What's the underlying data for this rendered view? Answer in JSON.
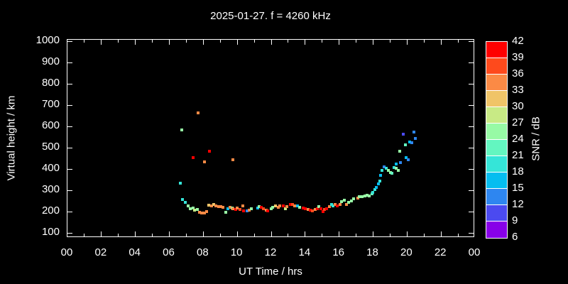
{
  "title": "2025-01-27. f = 4260 kHz",
  "x_axis": {
    "label": "UT Time / hrs",
    "tick_labels": [
      "00",
      "02",
      "04",
      "06",
      "08",
      "10",
      "12",
      "14",
      "16",
      "18",
      "20",
      "22",
      "00"
    ],
    "major_step_hrs": 2,
    "minor_step_hrs": 1,
    "range_hrs": [
      0,
      24
    ]
  },
  "y_axis": {
    "label": "Virtual height / km",
    "tick_labels": [
      "100",
      "200",
      "300",
      "400",
      "500",
      "600",
      "700",
      "800",
      "900",
      "1000"
    ],
    "tick_values": [
      100,
      200,
      300,
      400,
      500,
      600,
      700,
      800,
      900,
      1000
    ],
    "range_km": [
      100,
      1000
    ]
  },
  "colorbar": {
    "title": "SNR / dB",
    "tick_labels": [
      "42",
      "39",
      "36",
      "33",
      "30",
      "27",
      "24",
      "21",
      "18",
      "15",
      "12",
      "9",
      "6"
    ],
    "colors_top_to_bottom": [
      "#fe0000",
      "#fe4a1c",
      "#fb8a45",
      "#f0c468",
      "#c8ea85",
      "#97faa5",
      "#63f6c0",
      "#35e5d8",
      "#06bdf0",
      "#2e86f0",
      "#4b4af0",
      "#8800e8"
    ]
  },
  "chart_data": {
    "type": "scatter",
    "title": "2025-01-27. f = 4260 kHz",
    "xlabel": "UT Time / hrs",
    "ylabel": "Virtual height / km",
    "xlim": [
      0,
      24
    ],
    "ylim": [
      100,
      1000
    ],
    "grid": false,
    "legend": "colorbar SNR / dB, 6 to 42 step 3",
    "snr_bins": {
      "min": 6,
      "max": 42,
      "step": 3
    },
    "palette_low_to_high": [
      "#8800e8",
      "#4b4af0",
      "#2e86f0",
      "#06bdf0",
      "#35e5d8",
      "#63f6c0",
      "#97faa5",
      "#c8ea85",
      "#f0c468",
      "#fb8a45",
      "#fe4a1c",
      "#fe0000"
    ],
    "point_format": [
      "ut_time_hrs",
      "virtual_height_km",
      "snr_db"
    ],
    "points": [
      [
        6.66,
        332,
        19
      ],
      [
        6.79,
        256,
        19
      ],
      [
        6.95,
        243,
        19
      ],
      [
        7.12,
        226,
        25
      ],
      [
        7.25,
        215,
        25
      ],
      [
        7.41,
        217,
        25
      ],
      [
        7.5,
        206,
        28
      ],
      [
        7.66,
        209,
        25
      ],
      [
        7.79,
        198,
        34
      ],
      [
        7.92,
        195,
        34
      ],
      [
        8.08,
        195,
        34
      ],
      [
        8.21,
        201,
        34
      ],
      [
        8.33,
        231,
        31
      ],
      [
        8.5,
        226,
        34
      ],
      [
        8.63,
        235,
        31
      ],
      [
        8.75,
        228,
        34
      ],
      [
        8.92,
        224,
        34
      ],
      [
        9.05,
        222,
        34
      ],
      [
        9.17,
        219,
        34
      ],
      [
        9.34,
        197,
        25
      ],
      [
        9.47,
        215,
        16
      ],
      [
        9.59,
        220,
        34
      ],
      [
        9.68,
        217,
        25
      ],
      [
        9.76,
        215,
        34
      ],
      [
        9.89,
        211,
        40
      ],
      [
        10.01,
        217,
        34
      ],
      [
        10.18,
        209,
        37
      ],
      [
        10.31,
        226,
        34
      ],
      [
        10.39,
        202,
        40
      ],
      [
        10.56,
        204,
        13
      ],
      [
        10.72,
        206,
        34
      ],
      [
        10.85,
        215,
        25
      ],
      [
        11.22,
        217,
        16
      ],
      [
        11.31,
        224,
        25
      ],
      [
        11.43,
        220,
        40
      ],
      [
        11.56,
        215,
        37
      ],
      [
        11.69,
        206,
        34
      ],
      [
        11.81,
        202,
        40
      ],
      [
        11.98,
        213,
        25
      ],
      [
        12.1,
        220,
        25
      ],
      [
        12.27,
        226,
        31
      ],
      [
        12.4,
        220,
        34
      ],
      [
        12.52,
        228,
        34
      ],
      [
        12.69,
        226,
        40
      ],
      [
        12.82,
        215,
        28
      ],
      [
        12.94,
        224,
        34
      ],
      [
        13.11,
        233,
        40
      ],
      [
        13.24,
        235,
        37
      ],
      [
        13.36,
        228,
        34
      ],
      [
        13.53,
        226,
        16
      ],
      [
        13.66,
        220,
        25
      ],
      [
        13.87,
        217,
        40
      ],
      [
        13.99,
        215,
        40
      ],
      [
        14.16,
        209,
        34
      ],
      [
        14.29,
        206,
        40
      ],
      [
        14.41,
        202,
        37
      ],
      [
        14.58,
        209,
        34
      ],
      [
        14.7,
        215,
        40
      ],
      [
        14.79,
        224,
        25
      ],
      [
        14.91,
        215,
        40
      ],
      [
        15.04,
        199,
        40
      ],
      [
        15.12,
        209,
        37
      ],
      [
        15.25,
        215,
        40
      ],
      [
        15.41,
        224,
        34
      ],
      [
        15.54,
        235,
        19
      ],
      [
        15.62,
        226,
        19
      ],
      [
        15.75,
        235,
        34
      ],
      [
        15.87,
        226,
        40
      ],
      [
        16.04,
        235,
        34
      ],
      [
        16.16,
        248,
        25
      ],
      [
        16.29,
        254,
        25
      ],
      [
        16.42,
        235,
        34
      ],
      [
        16.54,
        243,
        25
      ],
      [
        16.71,
        251,
        25
      ],
      [
        16.84,
        260,
        25
      ],
      [
        17.09,
        262,
        34
      ],
      [
        17.17,
        269,
        25
      ],
      [
        17.34,
        271,
        25
      ],
      [
        17.51,
        274,
        25
      ],
      [
        17.63,
        277,
        25
      ],
      [
        17.76,
        273,
        25
      ],
      [
        17.93,
        282,
        22
      ],
      [
        17.97,
        291,
        19
      ],
      [
        18.1,
        302,
        19
      ],
      [
        18.18,
        315,
        16
      ],
      [
        18.31,
        329,
        16
      ],
      [
        18.39,
        343,
        19
      ],
      [
        18.43,
        371,
        16
      ],
      [
        18.51,
        395,
        19
      ],
      [
        18.64,
        409,
        13
      ],
      [
        18.77,
        402,
        19
      ],
      [
        18.89,
        393,
        25
      ],
      [
        19.02,
        385,
        25
      ],
      [
        19.1,
        379,
        22
      ],
      [
        19.23,
        406,
        19
      ],
      [
        19.35,
        402,
        25
      ],
      [
        19.48,
        392,
        25
      ],
      [
        19.35,
        422,
        16
      ],
      [
        19.6,
        429,
        13
      ],
      [
        19.56,
        482,
        25
      ],
      [
        19.89,
        512,
        22
      ],
      [
        19.94,
        452,
        16
      ],
      [
        20.06,
        442,
        13
      ],
      [
        20.15,
        528,
        16
      ],
      [
        20.27,
        522,
        13
      ],
      [
        19.77,
        562,
        10
      ],
      [
        20.4,
        572,
        13
      ],
      [
        20.48,
        545,
        13
      ],
      [
        6.74,
        582,
        25
      ],
      [
        7.7,
        665,
        34
      ],
      [
        7.41,
        455,
        40
      ],
      [
        8.38,
        482,
        40
      ],
      [
        8.08,
        432,
        34
      ],
      [
        9.76,
        444,
        34
      ]
    ]
  }
}
